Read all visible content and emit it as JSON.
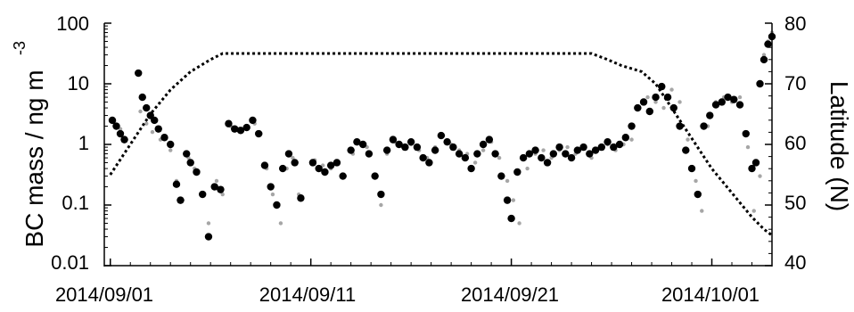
{
  "chart_data": {
    "type": "scatter",
    "title": "",
    "x_axis": {
      "label": "",
      "ticks": [
        "2014/09/01",
        "2014/09/11",
        "2014/09/21",
        "2014/10/01"
      ],
      "range_days": [
        -0.3,
        33
      ]
    },
    "y_left": {
      "label_main": "BC mass / ng m",
      "label_sup": "-3",
      "scale": "log",
      "range": [
        0.01,
        100
      ],
      "ticks": [
        100,
        10,
        1,
        0.1,
        0.01
      ],
      "tick_labels": [
        "100",
        "10",
        "1",
        "0.1",
        "0.01"
      ]
    },
    "y_right": {
      "label": "Latitude (N)",
      "range": [
        40,
        80
      ],
      "ticks": [
        80,
        70,
        60,
        50,
        40
      ],
      "tick_labels": [
        "80",
        "70",
        "60",
        "50",
        "40"
      ]
    },
    "series": [
      {
        "role": "high-resolution BC mass (gray dots)",
        "axis": "left",
        "color": "#a6a6a6",
        "points_day_value": [
          [
            0.2,
            2.4
          ],
          [
            0.5,
            1.8
          ],
          [
            0.8,
            1.2
          ],
          [
            1.5,
            3.5
          ],
          [
            1.8,
            2.2
          ],
          [
            2.1,
            1.6
          ],
          [
            2.5,
            1.2
          ],
          [
            3.0,
            0.8
          ],
          [
            3.3,
            0.25
          ],
          [
            3.6,
            0.12
          ],
          [
            3.9,
            0.6
          ],
          [
            4.2,
            0.4
          ],
          [
            4.6,
            0.15
          ],
          [
            4.9,
            0.05
          ],
          [
            5.3,
            0.25
          ],
          [
            5.6,
            0.15
          ],
          [
            6.0,
            2.0
          ],
          [
            6.4,
            1.8
          ],
          [
            6.8,
            2.0
          ],
          [
            7.2,
            2.2
          ],
          [
            7.5,
            1.5
          ],
          [
            7.8,
            0.4
          ],
          [
            8.1,
            0.15
          ],
          [
            8.5,
            0.05
          ],
          [
            8.8,
            0.4
          ],
          [
            9.1,
            0.6
          ],
          [
            9.4,
            0.15
          ],
          [
            10.2,
            0.55
          ],
          [
            10.6,
            0.45
          ],
          [
            11.0,
            0.4
          ],
          [
            11.3,
            0.5
          ],
          [
            11.7,
            0.3
          ],
          [
            12.1,
            0.7
          ],
          [
            12.5,
            1.0
          ],
          [
            12.8,
            0.9
          ],
          [
            13.2,
            0.3
          ],
          [
            13.5,
            0.1
          ],
          [
            13.8,
            0.7
          ],
          [
            14.2,
            1.1
          ],
          [
            14.6,
            0.9
          ],
          [
            15.0,
            1.0
          ],
          [
            15.4,
            0.8
          ],
          [
            15.8,
            0.6
          ],
          [
            16.2,
            0.9
          ],
          [
            16.6,
            1.4
          ],
          [
            17.0,
            1.0
          ],
          [
            17.4,
            0.8
          ],
          [
            17.8,
            0.7
          ],
          [
            18.2,
            0.5
          ],
          [
            18.6,
            0.8
          ],
          [
            19.0,
            1.1
          ],
          [
            19.4,
            0.6
          ],
          [
            19.8,
            0.25
          ],
          [
            20.1,
            0.12
          ],
          [
            20.4,
            0.05
          ],
          [
            20.8,
            0.4
          ],
          [
            21.2,
            0.7
          ],
          [
            21.6,
            0.8
          ],
          [
            22.0,
            0.6
          ],
          [
            22.4,
            0.8
          ],
          [
            22.8,
            0.9
          ],
          [
            23.2,
            0.7
          ],
          [
            23.6,
            0.9
          ],
          [
            24.0,
            0.6
          ],
          [
            24.4,
            0.9
          ],
          [
            24.8,
            1.0
          ],
          [
            25.2,
            0.8
          ],
          [
            25.6,
            1.0
          ],
          [
            26.0,
            1.2
          ],
          [
            26.4,
            4.0
          ],
          [
            26.8,
            6.0
          ],
          [
            27.2,
            5.0
          ],
          [
            27.6,
            4.0
          ],
          [
            28.0,
            8.0
          ],
          [
            28.4,
            5.0
          ],
          [
            28.8,
            1.2
          ],
          [
            29.2,
            0.25
          ],
          [
            29.5,
            0.08
          ],
          [
            29.8,
            2.0
          ],
          [
            30.2,
            5.0
          ],
          [
            30.6,
            6.0
          ],
          [
            31.0,
            5.0
          ],
          [
            31.4,
            6.0
          ],
          [
            31.8,
            0.9
          ],
          [
            32.1,
            0.08
          ],
          [
            32.4,
            0.3
          ],
          [
            32.6,
            30.0
          ],
          [
            32.8,
            50.0
          ],
          [
            33.0,
            70.0
          ]
        ]
      },
      {
        "role": "averaged BC mass (black dots)",
        "axis": "left",
        "color": "#000000",
        "points_day_value": [
          [
            0.1,
            2.5
          ],
          [
            0.3,
            2.0
          ],
          [
            0.5,
            1.5
          ],
          [
            0.7,
            1.2
          ],
          [
            1.4,
            15.0
          ],
          [
            1.6,
            6.0
          ],
          [
            1.8,
            4.0
          ],
          [
            2.0,
            3.0
          ],
          [
            2.2,
            2.5
          ],
          [
            2.4,
            1.8
          ],
          [
            2.7,
            1.3
          ],
          [
            3.0,
            1.0
          ],
          [
            3.3,
            0.22
          ],
          [
            3.5,
            0.12
          ],
          [
            3.8,
            0.7
          ],
          [
            4.0,
            0.5
          ],
          [
            4.3,
            0.35
          ],
          [
            4.6,
            0.15
          ],
          [
            4.9,
            0.03
          ],
          [
            5.2,
            0.2
          ],
          [
            5.5,
            0.18
          ],
          [
            5.9,
            2.2
          ],
          [
            6.2,
            1.8
          ],
          [
            6.5,
            1.7
          ],
          [
            6.8,
            1.9
          ],
          [
            7.1,
            2.5
          ],
          [
            7.4,
            1.5
          ],
          [
            7.7,
            0.45
          ],
          [
            8.0,
            0.2
          ],
          [
            8.3,
            0.1
          ],
          [
            8.6,
            0.4
          ],
          [
            8.9,
            0.7
          ],
          [
            9.2,
            0.5
          ],
          [
            9.5,
            0.13
          ],
          [
            10.1,
            0.5
          ],
          [
            10.4,
            0.4
          ],
          [
            10.7,
            0.35
          ],
          [
            11.0,
            0.45
          ],
          [
            11.3,
            0.5
          ],
          [
            11.6,
            0.3
          ],
          [
            12.0,
            0.8
          ],
          [
            12.3,
            1.1
          ],
          [
            12.6,
            1.0
          ],
          [
            12.9,
            0.7
          ],
          [
            13.2,
            0.3
          ],
          [
            13.5,
            0.15
          ],
          [
            13.8,
            0.8
          ],
          [
            14.1,
            1.2
          ],
          [
            14.4,
            1.0
          ],
          [
            14.7,
            0.9
          ],
          [
            15.0,
            1.1
          ],
          [
            15.3,
            0.9
          ],
          [
            15.6,
            0.6
          ],
          [
            15.9,
            0.5
          ],
          [
            16.2,
            0.8
          ],
          [
            16.5,
            1.4
          ],
          [
            16.8,
            1.1
          ],
          [
            17.1,
            0.9
          ],
          [
            17.4,
            0.7
          ],
          [
            17.7,
            0.6
          ],
          [
            18.0,
            0.4
          ],
          [
            18.3,
            0.7
          ],
          [
            18.6,
            1.0
          ],
          [
            18.9,
            1.2
          ],
          [
            19.2,
            0.7
          ],
          [
            19.5,
            0.3
          ],
          [
            19.8,
            0.12
          ],
          [
            20.0,
            0.06
          ],
          [
            20.3,
            0.35
          ],
          [
            20.6,
            0.6
          ],
          [
            20.9,
            0.7
          ],
          [
            21.2,
            0.8
          ],
          [
            21.5,
            0.6
          ],
          [
            21.8,
            0.5
          ],
          [
            22.1,
            0.7
          ],
          [
            22.4,
            0.9
          ],
          [
            22.7,
            0.7
          ],
          [
            23.0,
            0.6
          ],
          [
            23.3,
            0.8
          ],
          [
            23.6,
            0.9
          ],
          [
            23.9,
            0.7
          ],
          [
            24.2,
            0.8
          ],
          [
            24.5,
            0.9
          ],
          [
            24.8,
            1.1
          ],
          [
            25.1,
            0.9
          ],
          [
            25.4,
            1.0
          ],
          [
            25.7,
            1.3
          ],
          [
            26.0,
            2.0
          ],
          [
            26.3,
            4.0
          ],
          [
            26.6,
            5.0
          ],
          [
            26.9,
            3.5
          ],
          [
            27.2,
            6.0
          ],
          [
            27.5,
            9.0
          ],
          [
            27.8,
            6.0
          ],
          [
            28.1,
            4.0
          ],
          [
            28.4,
            2.0
          ],
          [
            28.7,
            0.8
          ],
          [
            29.0,
            0.4
          ],
          [
            29.3,
            0.15
          ],
          [
            29.6,
            2.0
          ],
          [
            29.9,
            3.0
          ],
          [
            30.2,
            4.5
          ],
          [
            30.5,
            5.0
          ],
          [
            30.8,
            6.0
          ],
          [
            31.1,
            5.5
          ],
          [
            31.4,
            4.5
          ],
          [
            31.7,
            1.5
          ],
          [
            32.0,
            0.4
          ],
          [
            32.2,
            0.5
          ],
          [
            32.4,
            10.0
          ],
          [
            32.6,
            25.0
          ],
          [
            32.8,
            45.0
          ],
          [
            33.0,
            60.0
          ]
        ]
      },
      {
        "role": "ship latitude (dashed)",
        "axis": "right",
        "color": "#000000",
        "line_style": "dashed",
        "points_day_value": [
          [
            0.0,
            55
          ],
          [
            1.0,
            60
          ],
          [
            2.0,
            65
          ],
          [
            3.0,
            69
          ],
          [
            4.0,
            72
          ],
          [
            5.0,
            74
          ],
          [
            5.6,
            75
          ],
          [
            10.0,
            75
          ],
          [
            15.0,
            75
          ],
          [
            20.0,
            75
          ],
          [
            24.0,
            75
          ],
          [
            24.8,
            74
          ],
          [
            25.5,
            73
          ],
          [
            26.5,
            72
          ],
          [
            27.2,
            70
          ],
          [
            28.0,
            66
          ],
          [
            29.0,
            61
          ],
          [
            30.0,
            56
          ],
          [
            31.0,
            52
          ],
          [
            32.0,
            48
          ],
          [
            32.6,
            46
          ],
          [
            33.0,
            45
          ]
        ]
      }
    ],
    "grid": false,
    "legend": "none"
  }
}
